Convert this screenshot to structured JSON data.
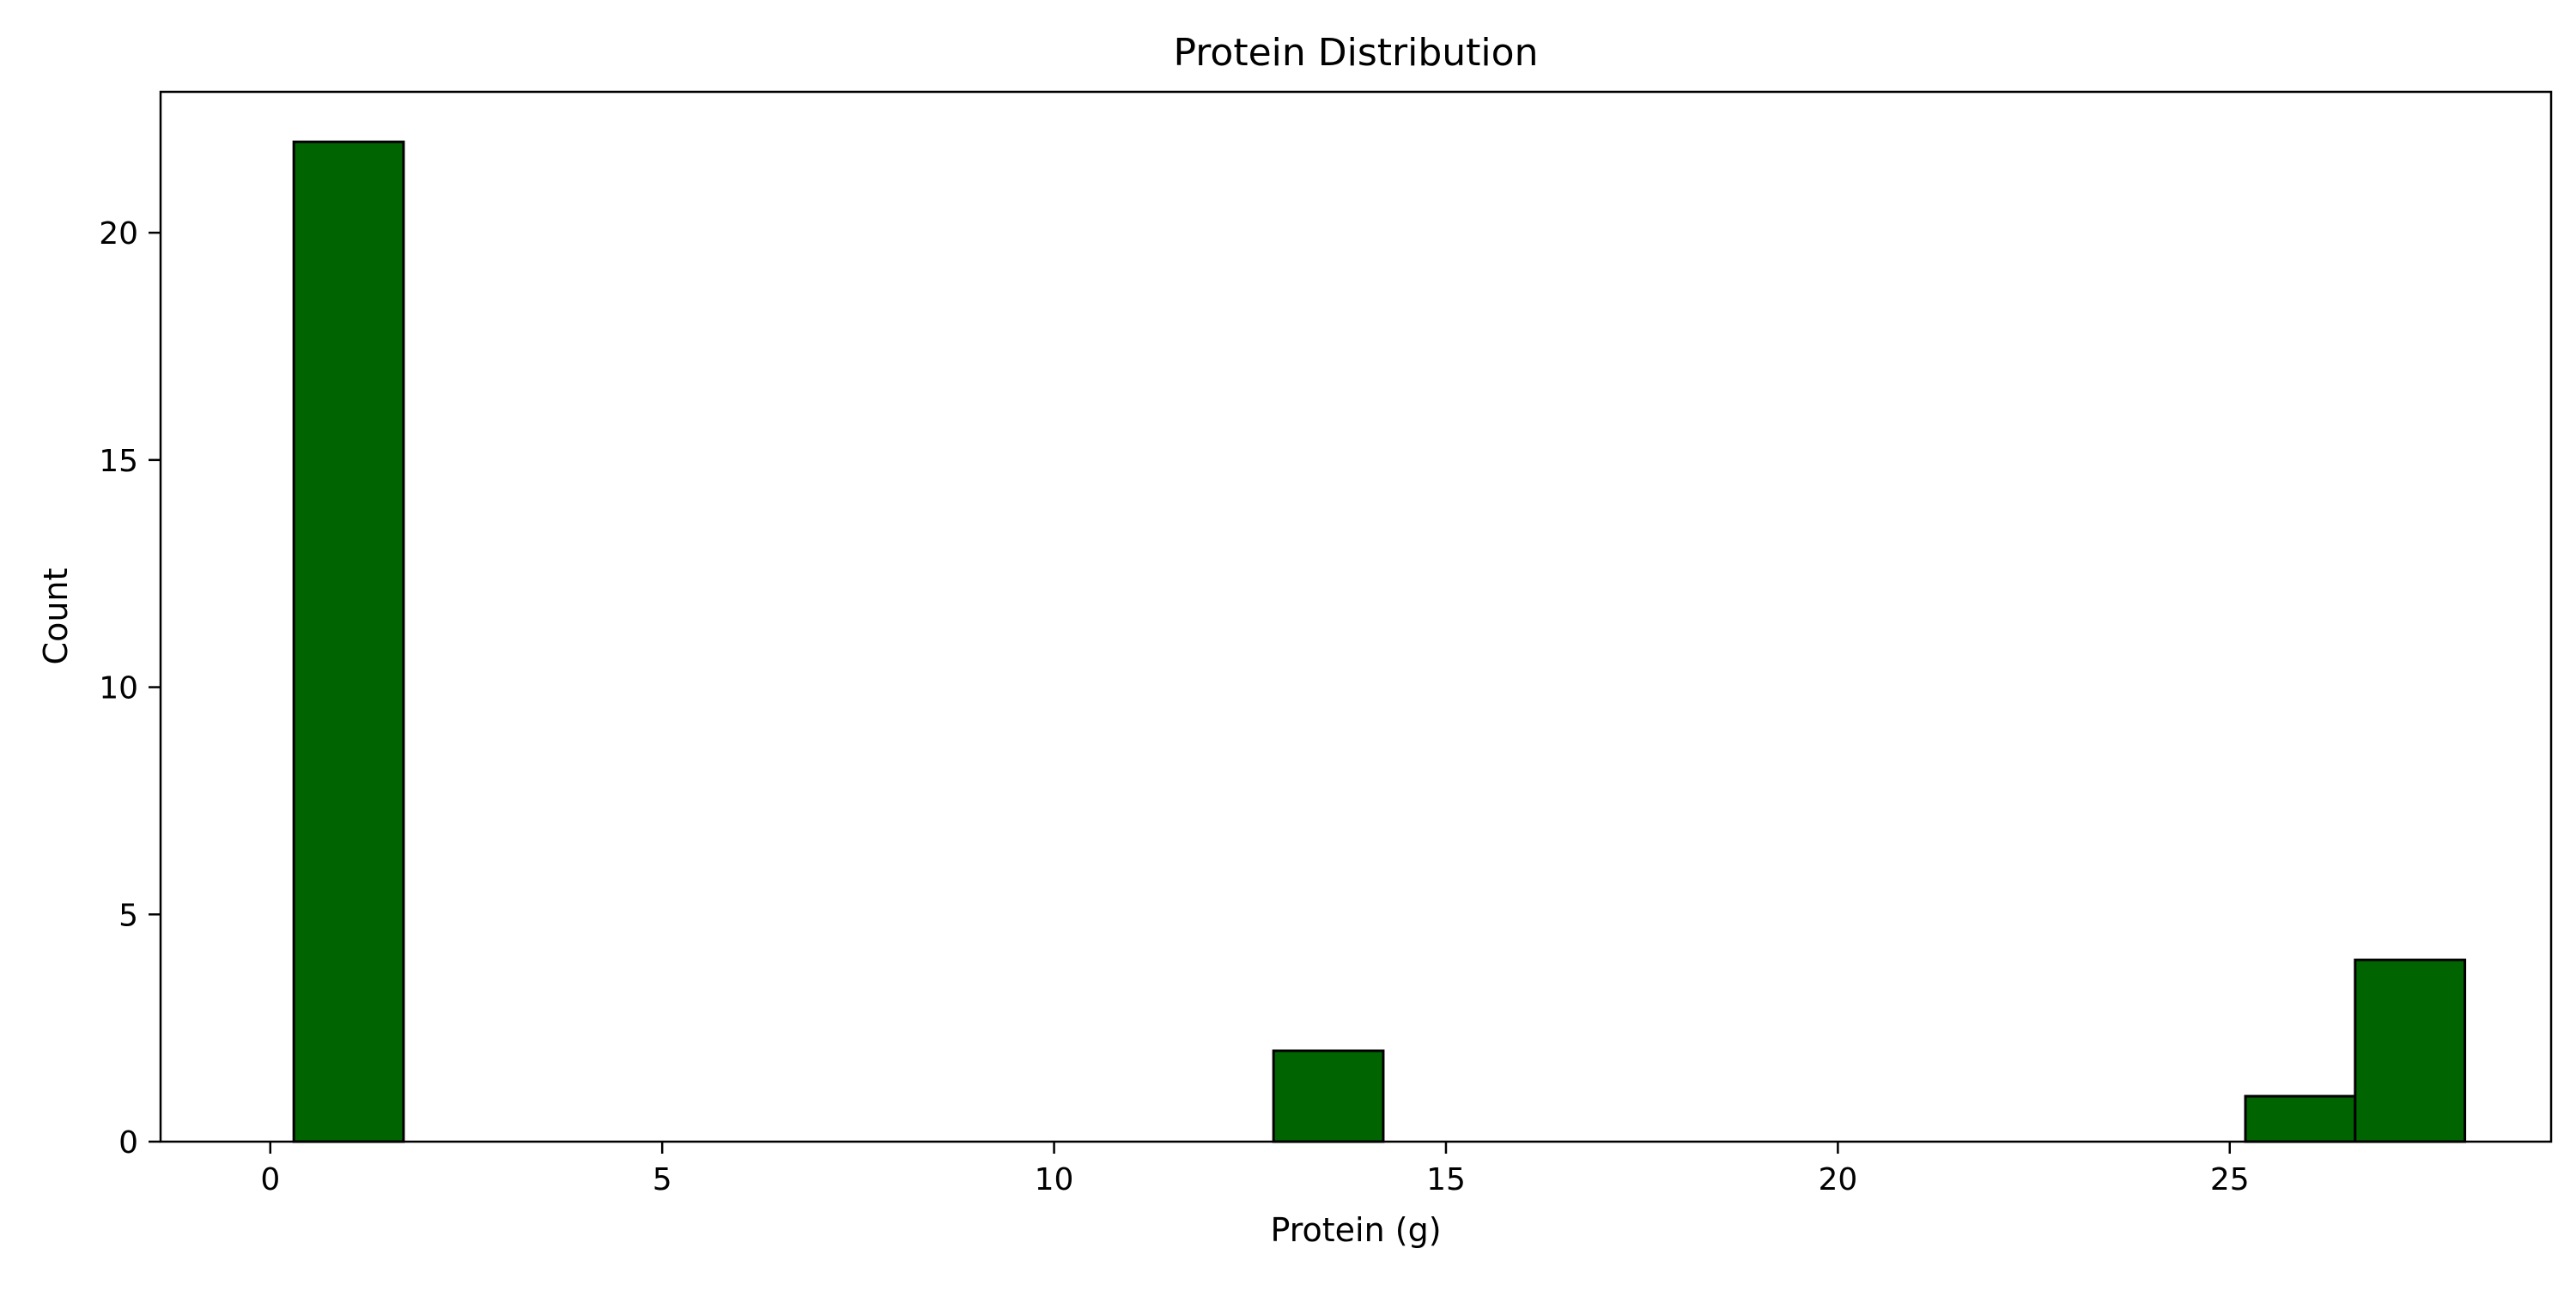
{
  "chart_data": {
    "type": "bar",
    "title": "Protein Distribution",
    "xlabel": "Protein (g)",
    "ylabel": "Count",
    "xlim": [
      -1.4,
      29.1
    ],
    "ylim": [
      0,
      23.1
    ],
    "x_ticks": [
      0,
      5,
      10,
      15,
      20,
      25
    ],
    "y_ticks": [
      0,
      5,
      10,
      15,
      20
    ],
    "grid": false,
    "bar_color": "#006400",
    "edge_color": "#000000",
    "bins": [
      {
        "x0": 0.3,
        "x1": 1.7,
        "count": 22
      },
      {
        "x0": 12.8,
        "x1": 14.2,
        "count": 2
      },
      {
        "x0": 25.2,
        "x1": 26.6,
        "count": 1
      },
      {
        "x0": 26.6,
        "x1": 28.0,
        "count": 4
      }
    ]
  }
}
